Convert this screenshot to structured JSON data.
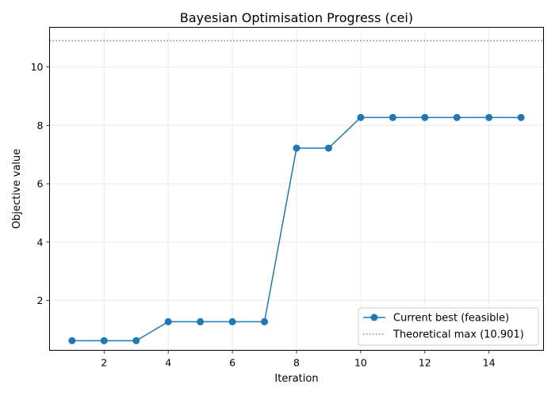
{
  "chart_data": {
    "type": "line",
    "title": "Bayesian Optimisation Progress (cei)",
    "xlabel": "Iteration",
    "ylabel": "Objective value",
    "xlim": [
      0.3,
      15.7
    ],
    "ylim": [
      0.29,
      11.36
    ],
    "xticks": [
      2,
      4,
      6,
      8,
      10,
      12,
      14
    ],
    "yticks": [
      2,
      4,
      6,
      8,
      10
    ],
    "grid": true,
    "legend_position": "lower right",
    "colors": {
      "series": "#1f77b4",
      "reference": "#808080"
    },
    "series": [
      {
        "name": "Current best (feasible)",
        "style": "line-with-markers",
        "x": [
          1,
          2,
          3,
          4,
          5,
          6,
          7,
          8,
          9,
          10,
          11,
          12,
          13,
          14,
          15
        ],
        "values": [
          0.62,
          0.62,
          0.62,
          1.27,
          1.27,
          1.27,
          1.27,
          7.22,
          7.22,
          8.27,
          8.27,
          8.27,
          8.27,
          8.27,
          8.27
        ]
      }
    ],
    "reference_lines": [
      {
        "name": "Theoretical max (10.901)",
        "y": 10.901,
        "style": "dotted"
      }
    ]
  }
}
